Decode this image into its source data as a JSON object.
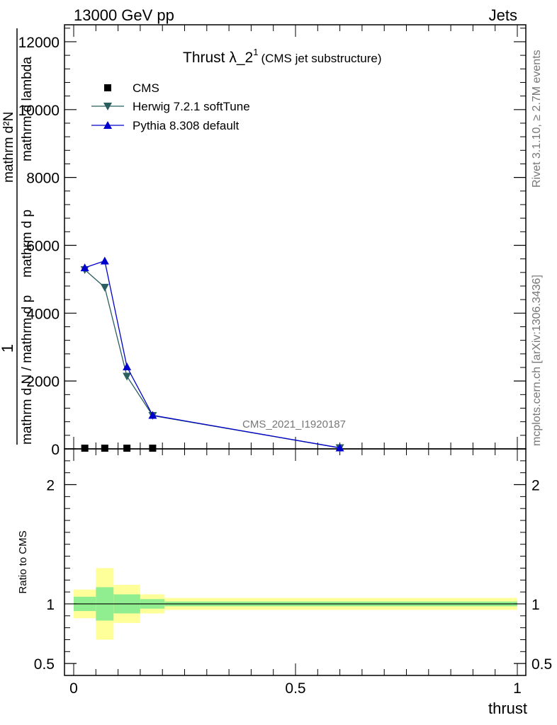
{
  "header": {
    "energy_label": "13000 GeV pp",
    "process_label": "Jets"
  },
  "side_labels": {
    "rivet": "Rivet 3.1.10, ≥ 2.7M events",
    "mcplots": "mcplots.cern.ch [arXiv:1306.3436]"
  },
  "watermark": "CMS_2021_I1920187",
  "colors": {
    "cms": "#000000",
    "herwig": "#2b5f5f",
    "pythia": "#0000cc",
    "band_inner": "#90ee90",
    "band_outer": "#ffff99"
  },
  "chart_data": [
    {
      "type": "line",
      "title_main": "Thrust λ_2",
      "title_sup": "1",
      "title_sub": "(CMS jet substructure)",
      "ylabel_num": "1",
      "ylabel_den": "mathrm d N / mathrm d p",
      "ylabel_mathrm_dN": "mathrm d²N",
      "ylabel_mathrm_dpT": "mathrm d p",
      "ylabel_T": "T",
      "ylabel_dlambda": "mathrm d lambda",
      "ylabel_T_sub": "T",
      "xlim": [
        0,
        1
      ],
      "ylim": [
        0,
        12500
      ],
      "yticks": [
        0,
        2000,
        4000,
        6000,
        8000,
        10000,
        12000
      ],
      "ytick_labels": [
        "0",
        "2000",
        "4000",
        "6000",
        "8000",
        "10000",
        "12000"
      ],
      "legend": [
        "CMS",
        "Herwig 7.2.1 softTune",
        "Pythia 8.308 default"
      ],
      "legend_placement": "top-left",
      "series": [
        {
          "name": "CMS",
          "marker": "square",
          "x": [
            0.025,
            0.07,
            0.12,
            0.178
          ],
          "y": [
            0,
            0,
            0,
            0
          ]
        },
        {
          "name": "Herwig 7.2.1 softTune",
          "marker": "triangle-down",
          "x": [
            0.025,
            0.07,
            0.12,
            0.178,
            0.6
          ],
          "y": [
            5280,
            4760,
            2140,
            980,
            30
          ]
        },
        {
          "name": "Pythia 8.308 default",
          "marker": "triangle-up",
          "x": [
            0.025,
            0.07,
            0.12,
            0.178,
            0.6
          ],
          "y": [
            5340,
            5540,
            2420,
            990,
            30
          ]
        }
      ]
    },
    {
      "type": "area",
      "ylabel": "Ratio to CMS",
      "xlabel": "thrust",
      "xlim": [
        0,
        1
      ],
      "ylim": [
        0.4,
        2.3
      ],
      "xticks": [
        0,
        0.5,
        1
      ],
      "xtick_labels": [
        "0",
        "0.5",
        "1"
      ],
      "yticks": [
        0.5,
        1,
        2
      ],
      "ytick_labels": [
        "0.5",
        "1",
        "2"
      ],
      "bins": [
        {
          "x0": 0.0,
          "x1": 0.05,
          "inner_lo": 0.94,
          "inner_hi": 1.06,
          "outer_lo": 0.88,
          "outer_hi": 1.12
        },
        {
          "x0": 0.05,
          "x1": 0.09,
          "inner_lo": 0.86,
          "inner_hi": 1.14,
          "outer_lo": 0.7,
          "outer_hi": 1.3
        },
        {
          "x0": 0.09,
          "x1": 0.15,
          "inner_lo": 0.92,
          "inner_hi": 1.08,
          "outer_lo": 0.84,
          "outer_hi": 1.16
        },
        {
          "x0": 0.15,
          "x1": 0.205,
          "inner_lo": 0.96,
          "inner_hi": 1.04,
          "outer_lo": 0.92,
          "outer_hi": 1.08
        },
        {
          "x0": 0.205,
          "x1": 1.0,
          "inner_lo": 0.98,
          "inner_hi": 1.02,
          "outer_lo": 0.95,
          "outer_hi": 1.05
        }
      ],
      "reference_line": 1
    }
  ]
}
